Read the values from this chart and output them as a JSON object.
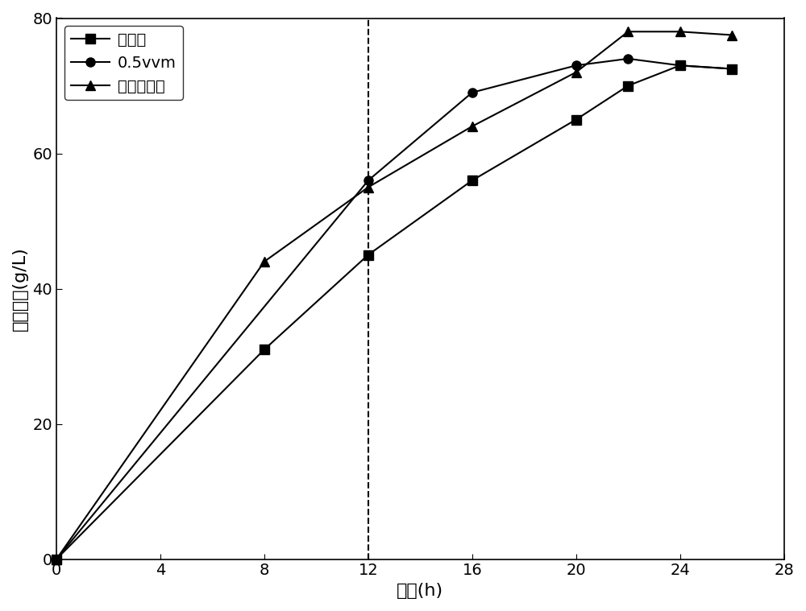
{
  "series": [
    {
      "label": "不通气",
      "marker": "s",
      "x": [
        0,
        8,
        12,
        16,
        20,
        22,
        24,
        26
      ],
      "y": [
        0,
        31,
        45,
        56,
        65,
        70,
        73,
        72.5
      ]
    },
    {
      "label": "0.5vvm",
      "marker": "o",
      "x": [
        0,
        12,
        16,
        20,
        22,
        24,
        26
      ],
      "y": [
        0,
        56,
        69,
        73,
        74,
        73,
        72.5
      ]
    },
    {
      "label": "两阶段通气",
      "marker": "^",
      "x": [
        0,
        8,
        12,
        16,
        20,
        22,
        24,
        26
      ],
      "y": [
        0,
        44,
        55,
        64,
        72,
        78,
        78,
        77.5
      ]
    }
  ],
  "dashed_vline_x": 12,
  "xlabel": "时间(h)",
  "ylabel": "苯丙酮酸(g/L)",
  "xlim": [
    0,
    28
  ],
  "ylim": [
    0,
    80
  ],
  "xticks": [
    0,
    4,
    8,
    12,
    16,
    20,
    24,
    28
  ],
  "yticks": [
    0,
    20,
    40,
    60,
    80
  ],
  "color": "#000000",
  "linewidth": 1.5,
  "markersize": 8,
  "legend_loc": "upper left",
  "figsize": [
    10.0,
    7.59
  ],
  "dpi": 100,
  "font_size": 14,
  "label_font_size": 16,
  "background_color": "#ffffff"
}
